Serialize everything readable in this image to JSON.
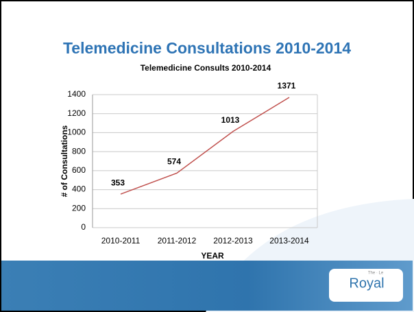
{
  "slide_title": "Telemedicine Consultations 2010-2014",
  "chart_data": {
    "type": "line",
    "title": "Telemedicine Consults 2010-2014",
    "categories": [
      "2010-2011",
      "2011-2012",
      "2012-2013",
      "2013-2014"
    ],
    "values": [
      353,
      574,
      1013,
      1371
    ],
    "color": "#c0504d",
    "ylim": [
      0,
      1400
    ],
    "yticks": [
      0,
      200,
      400,
      600,
      800,
      1000,
      1200,
      1400
    ],
    "xlabel": "YEAR",
    "ylabel": "# of Consultations",
    "grid": true
  },
  "footer": {
    "logo_small": "The · Le",
    "logo": "Royal"
  }
}
